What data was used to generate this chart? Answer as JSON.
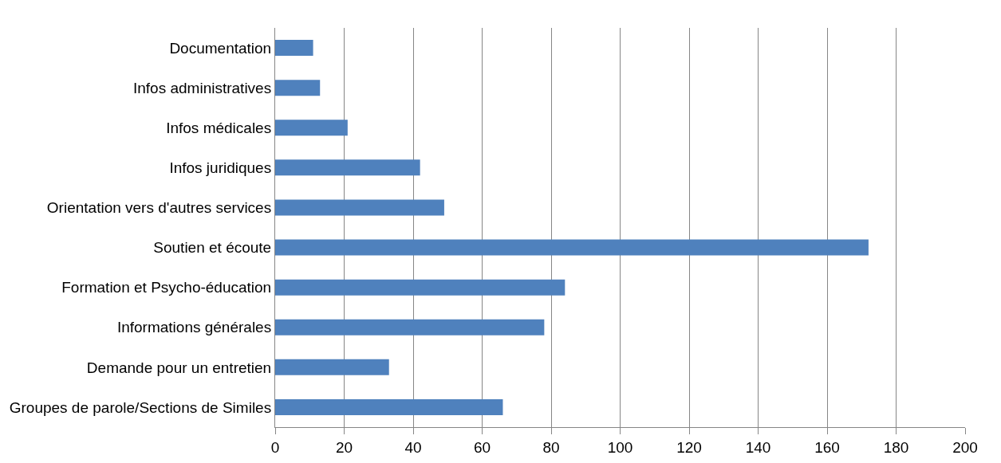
{
  "chart_data": {
    "type": "bar",
    "orientation": "horizontal",
    "categories": [
      "Documentation",
      "Infos administratives",
      "Infos médicales",
      "Infos juridiques",
      "Orientation vers d'autres services",
      "Soutien et écoute",
      "Formation et Psycho-éducation",
      "Informations générales",
      "Demande pour un entretien",
      "Groupes de parole/Sections de Similes"
    ],
    "values": [
      11,
      13,
      21,
      42,
      49,
      172,
      84,
      78,
      33,
      66
    ],
    "color": "#4f81bd",
    "xlim": [
      0,
      200
    ],
    "xticks": [
      0,
      20,
      40,
      60,
      80,
      100,
      120,
      140,
      160,
      180,
      200
    ],
    "grid": "x"
  }
}
